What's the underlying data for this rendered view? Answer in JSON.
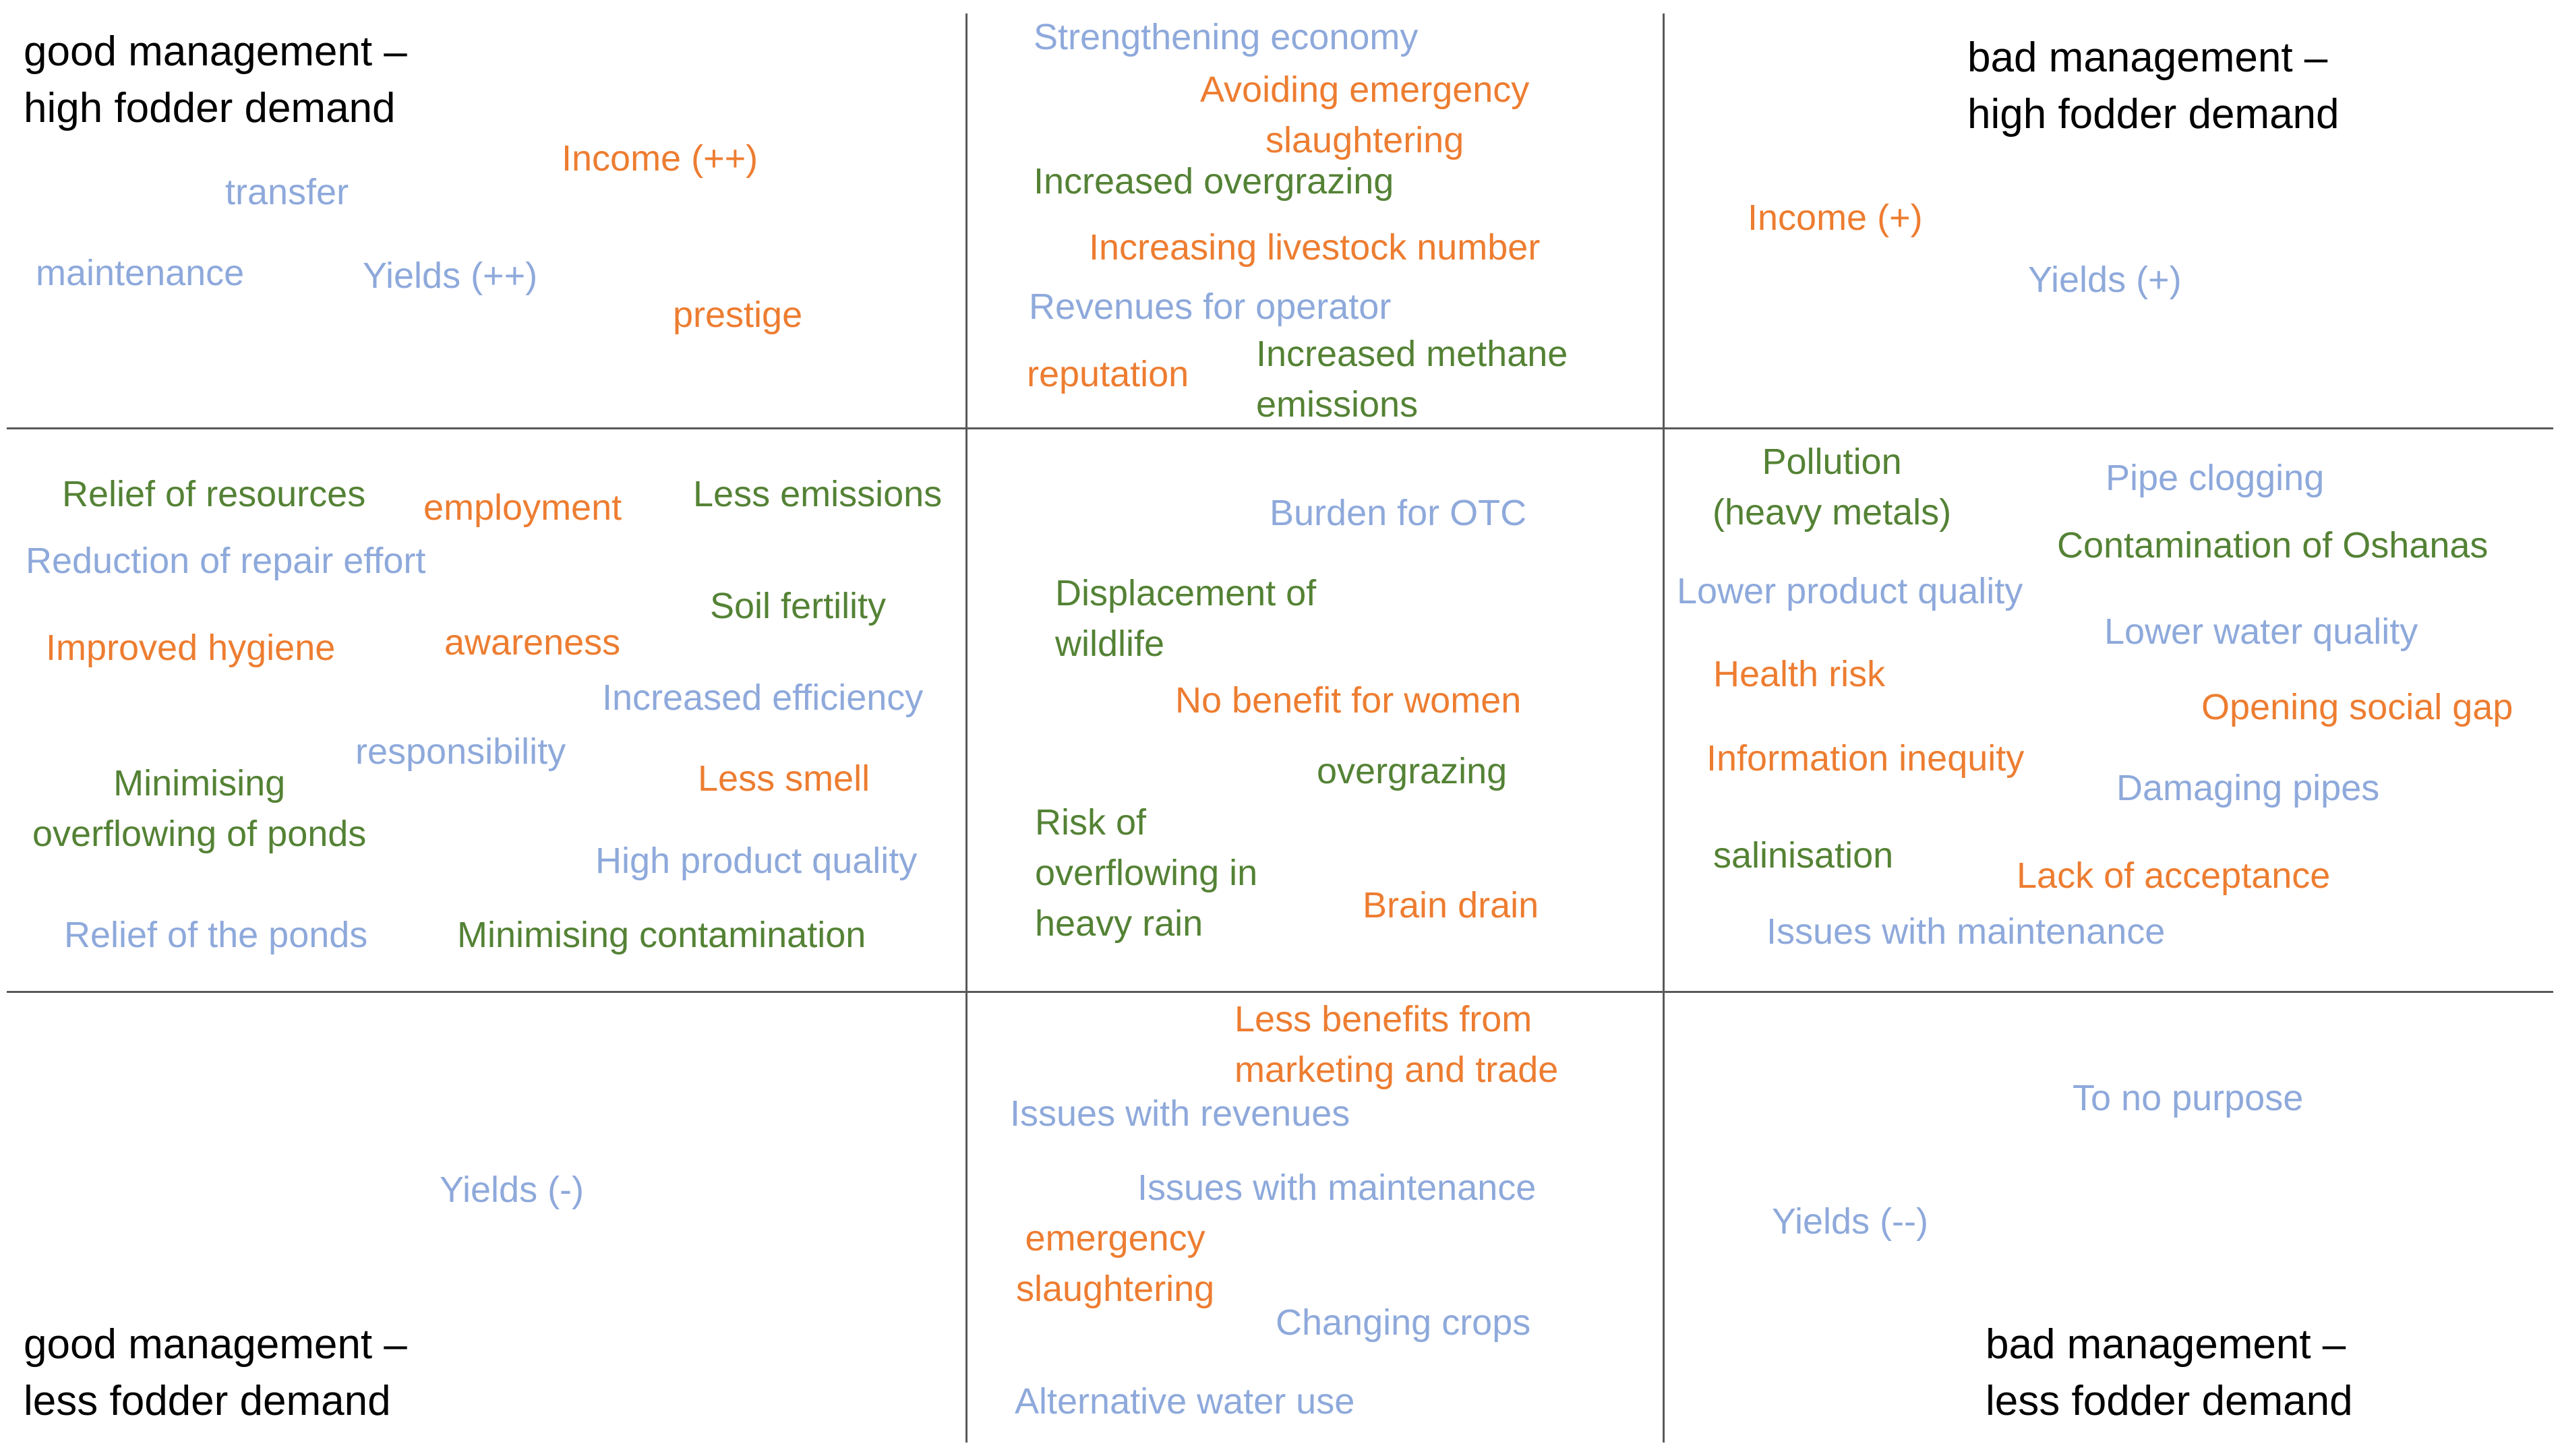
{
  "colors": {
    "social": "#ed7d31",
    "economic": "#8ea9db",
    "environmental": "#548235",
    "grid": "#595959",
    "corner_text": "#000000"
  },
  "corners": {
    "top_left": [
      "good management –",
      "high fodder demand"
    ],
    "top_right": [
      "bad management –",
      "high fodder demand"
    ],
    "bottom_left": [
      "good management –",
      "less fodder demand"
    ],
    "bottom_right": [
      "bad management –",
      "less fodder demand"
    ]
  },
  "cells": {
    "top_left": [
      {
        "lines": [
          "Income (++)"
        ],
        "color": "orange"
      },
      {
        "lines": [
          "transfer"
        ],
        "color": "blue"
      },
      {
        "lines": [
          "maintenance"
        ],
        "color": "blue"
      },
      {
        "lines": [
          "Yields (++)"
        ],
        "color": "blue"
      },
      {
        "lines": [
          "prestige"
        ],
        "color": "orange"
      }
    ],
    "top_center": [
      {
        "lines": [
          "Strengthening economy"
        ],
        "color": "blue"
      },
      {
        "lines": [
          "Avoiding emergency",
          "slaughtering"
        ],
        "color": "orange"
      },
      {
        "lines": [
          "Increased overgrazing"
        ],
        "color": "green"
      },
      {
        "lines": [
          "Increasing livestock number"
        ],
        "color": "orange"
      },
      {
        "lines": [
          "Revenues for operator"
        ],
        "color": "blue"
      },
      {
        "lines": [
          "reputation"
        ],
        "color": "orange"
      },
      {
        "lines": [
          "Increased methane",
          "emissions"
        ],
        "color": "green"
      }
    ],
    "top_right": [
      {
        "lines": [
          "Income (+)"
        ],
        "color": "orange"
      },
      {
        "lines": [
          "Yields (+)"
        ],
        "color": "blue"
      }
    ],
    "middle_left": [
      {
        "lines": [
          "Relief of resources"
        ],
        "color": "green"
      },
      {
        "lines": [
          "employment"
        ],
        "color": "orange"
      },
      {
        "lines": [
          "Less emissions"
        ],
        "color": "green"
      },
      {
        "lines": [
          "Reduction of repair effort"
        ],
        "color": "blue"
      },
      {
        "lines": [
          "Soil fertility"
        ],
        "color": "green"
      },
      {
        "lines": [
          "Improved hygiene"
        ],
        "color": "orange"
      },
      {
        "lines": [
          "awareness"
        ],
        "color": "orange"
      },
      {
        "lines": [
          "Increased efficiency"
        ],
        "color": "blue"
      },
      {
        "lines": [
          "responsibility"
        ],
        "color": "blue"
      },
      {
        "lines": [
          "Minimising",
          "overflowing of ponds"
        ],
        "color": "green"
      },
      {
        "lines": [
          "Less smell"
        ],
        "color": "orange"
      },
      {
        "lines": [
          "High product quality"
        ],
        "color": "blue"
      },
      {
        "lines": [
          "Relief of the ponds"
        ],
        "color": "blue"
      },
      {
        "lines": [
          "Minimising contamination"
        ],
        "color": "green"
      }
    ],
    "middle_center": [
      {
        "lines": [
          "Burden for OTC"
        ],
        "color": "blue"
      },
      {
        "lines": [
          "Displacement of",
          "wildlife"
        ],
        "color": "green"
      },
      {
        "lines": [
          "No benefit for women"
        ],
        "color": "orange"
      },
      {
        "lines": [
          "overgrazing"
        ],
        "color": "green"
      },
      {
        "lines": [
          "Risk of",
          "overflowing in",
          "heavy rain"
        ],
        "color": "green"
      },
      {
        "lines": [
          "Brain drain"
        ],
        "color": "orange"
      }
    ],
    "middle_right": [
      {
        "lines": [
          "Pollution",
          "(heavy metals)"
        ],
        "color": "green"
      },
      {
        "lines": [
          "Pipe clogging"
        ],
        "color": "blue"
      },
      {
        "lines": [
          "Contamination of Oshanas"
        ],
        "color": "green"
      },
      {
        "lines": [
          "Lower product quality"
        ],
        "color": "blue"
      },
      {
        "lines": [
          "Lower water quality"
        ],
        "color": "blue"
      },
      {
        "lines": [
          "Health risk"
        ],
        "color": "orange"
      },
      {
        "lines": [
          "Opening social gap"
        ],
        "color": "orange"
      },
      {
        "lines": [
          "Information inequity"
        ],
        "color": "orange"
      },
      {
        "lines": [
          "Damaging pipes"
        ],
        "color": "blue"
      },
      {
        "lines": [
          "salinisation"
        ],
        "color": "green"
      },
      {
        "lines": [
          "Lack of acceptance"
        ],
        "color": "orange"
      },
      {
        "lines": [
          "Issues with maintenance"
        ],
        "color": "blue"
      }
    ],
    "bottom_left": [
      {
        "lines": [
          "Yields (-)"
        ],
        "color": "blue"
      }
    ],
    "bottom_center": [
      {
        "lines": [
          "Less benefits from",
          "marketing and trade"
        ],
        "color": "orange"
      },
      {
        "lines": [
          "Issues with revenues"
        ],
        "color": "blue"
      },
      {
        "lines": [
          "Issues with maintenance"
        ],
        "color": "blue"
      },
      {
        "lines": [
          "emergency",
          "slaughtering"
        ],
        "color": "orange"
      },
      {
        "lines": [
          "Changing crops"
        ],
        "color": "blue"
      },
      {
        "lines": [
          "Alternative water use"
        ],
        "color": "blue"
      }
    ],
    "bottom_right": [
      {
        "lines": [
          "To no purpose"
        ],
        "color": "blue"
      },
      {
        "lines": [
          "Yields (--)"
        ],
        "color": "blue"
      }
    ]
  }
}
